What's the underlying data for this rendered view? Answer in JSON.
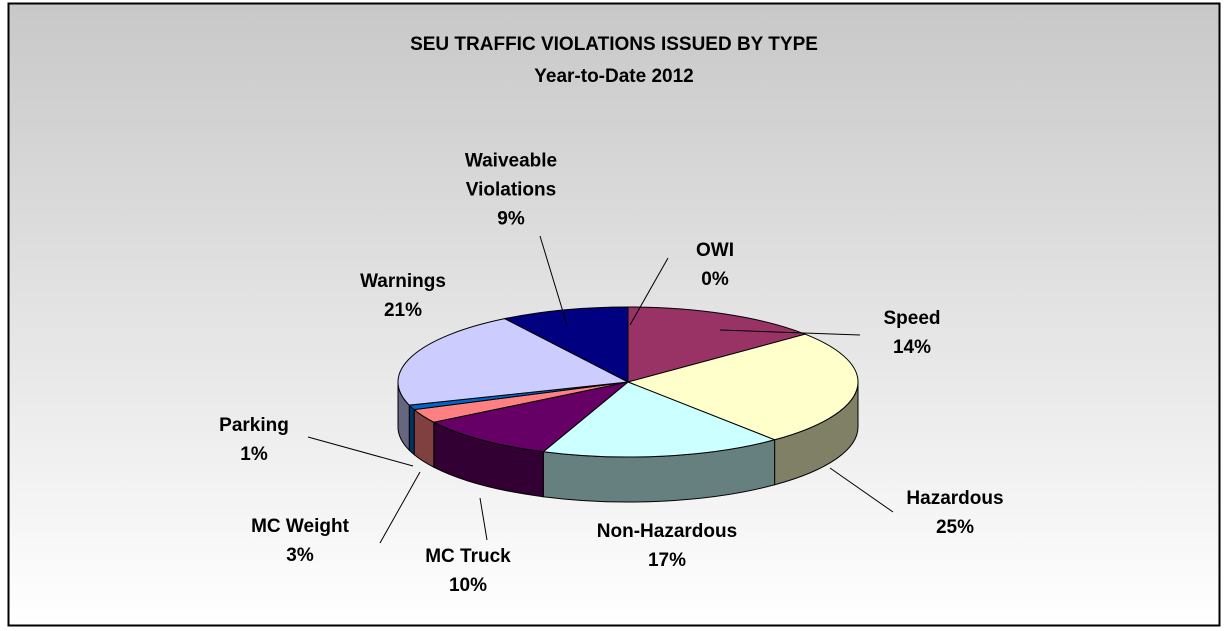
{
  "chart_data": {
    "type": "pie",
    "title": "SEU TRAFFIC VIOLATIONS ISSUED BY TYPE",
    "subtitle": "Year-to-Date 2012",
    "categories": [
      "OWI",
      "Speed",
      "Hazardous",
      "Non-Hazardous",
      "MC Truck",
      "MC Weight",
      "Parking",
      "Warnings",
      "Waiveable Violations"
    ],
    "values": [
      0,
      14,
      25,
      17,
      10,
      3,
      1,
      21,
      9
    ],
    "value_labels": [
      "0%",
      "14%",
      "25%",
      "17%",
      "10%",
      "3%",
      "1%",
      "21%",
      "9%"
    ],
    "colors": [
      "#9999ff",
      "#993366",
      "#ffffcc",
      "#ccffff",
      "#660066",
      "#ff8080",
      "#0066cc",
      "#ccccff",
      "#000080"
    ],
    "style": "3d"
  }
}
